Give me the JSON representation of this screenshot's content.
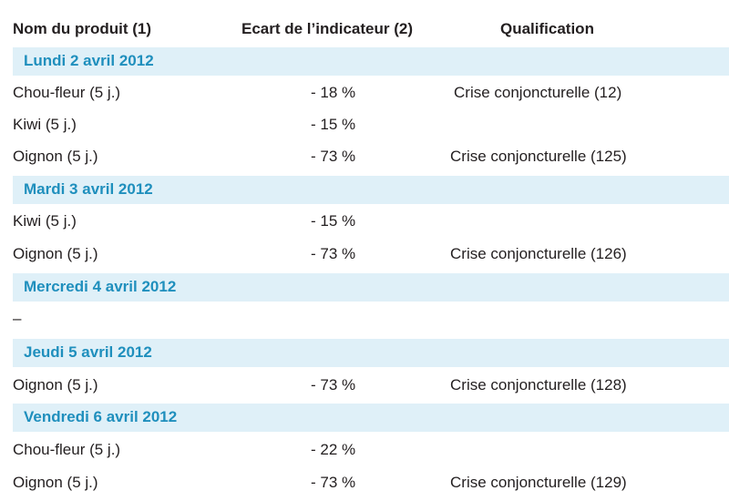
{
  "header": {
    "product": "Nom du produit (1)",
    "indicator": "Ecart de l’indicateur (2)",
    "qualification": "Qualification"
  },
  "days": [
    {
      "label": "Lundi 2 avril 2012",
      "rows": [
        {
          "product": "Chou-fleur (5 j.)",
          "indicator": "- 18 %",
          "qualification": "Crise conjoncturelle (12)"
        },
        {
          "product": "Kiwi (5 j.)",
          "indicator": "- 15 %",
          "qualification": ""
        },
        {
          "product": "Oignon (5 j.)",
          "indicator": "- 73 %",
          "qualification": "Crise conjoncturelle (125)"
        }
      ]
    },
    {
      "label": "Mardi 3 avril 2012",
      "rows": [
        {
          "product": "Kiwi (5 j.)",
          "indicator": "- 15 %",
          "qualification": ""
        },
        {
          "product": "Oignon (5 j.)",
          "indicator": "- 73 %",
          "qualification": "Crise conjoncturelle (126)"
        }
      ]
    },
    {
      "label": "Mercredi 4 avril 2012",
      "empty": "–"
    },
    {
      "label": "Jeudi 5 avril 2012",
      "rows": [
        {
          "product": "Oignon (5 j.)",
          "indicator": "- 73 %",
          "qualification": "Crise conjoncturelle (128)"
        }
      ]
    },
    {
      "label": "Vendredi 6 avril 2012",
      "rows": [
        {
          "product": "Chou-fleur (5 j.)",
          "indicator": "- 22 %",
          "qualification": ""
        },
        {
          "product": "Oignon (5 j.)",
          "indicator": "- 73 %",
          "qualification": "Crise conjoncturelle (129)"
        }
      ]
    }
  ]
}
